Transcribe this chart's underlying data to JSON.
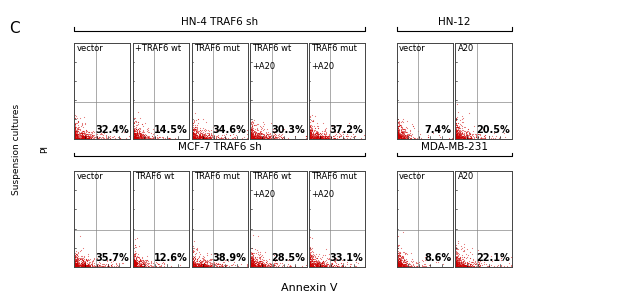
{
  "title_row1": "HN-4 TRAF6 sh",
  "title_row2": "MCF-7 TRAF6 sh",
  "title_col_right_row1": "HN-12",
  "title_col_right_row2": "MDA-MB-231",
  "panel_label": "C",
  "xlabel": "Annexin V",
  "ylabel_outer": "Suspension cultures",
  "ylabel_inner": "PI",
  "row1_panels": [
    {
      "label": "vector",
      "pct": "32.4%"
    },
    {
      "label": "+TRAF6 wt",
      "pct": "14.5%"
    },
    {
      "label": "TRAF6 mut",
      "pct": "34.6%"
    },
    {
      "label": "TRAF6 wt\n+A20",
      "pct": "30.3%"
    },
    {
      "label": "TRAF6 mut\n+A20",
      "pct": "37.2%"
    }
  ],
  "row1_right_panels": [
    {
      "label": "vector",
      "pct": "7.4%"
    },
    {
      "label": "A20",
      "pct": "20.5%"
    }
  ],
  "row2_panels": [
    {
      "label": "vector",
      "pct": "35.7%"
    },
    {
      "label": "TRAF6 wt",
      "pct": "12.6%"
    },
    {
      "label": "TRAF6 mut",
      "pct": "38.9%"
    },
    {
      "label": "TRAF6 wt\n+A20",
      "pct": "28.5%"
    },
    {
      "label": "TRAF6 mut\n+A20",
      "pct": "33.1%"
    }
  ],
  "row2_right_panels": [
    {
      "label": "vector",
      "pct": "8.6%"
    },
    {
      "label": "A20",
      "pct": "22.1%"
    }
  ],
  "dot_color": "#CC0000",
  "bg_color": "#FFFFFF",
  "pct_fontsize": 7,
  "label_fontsize": 6.0,
  "group_label_fontsize": 7.5
}
